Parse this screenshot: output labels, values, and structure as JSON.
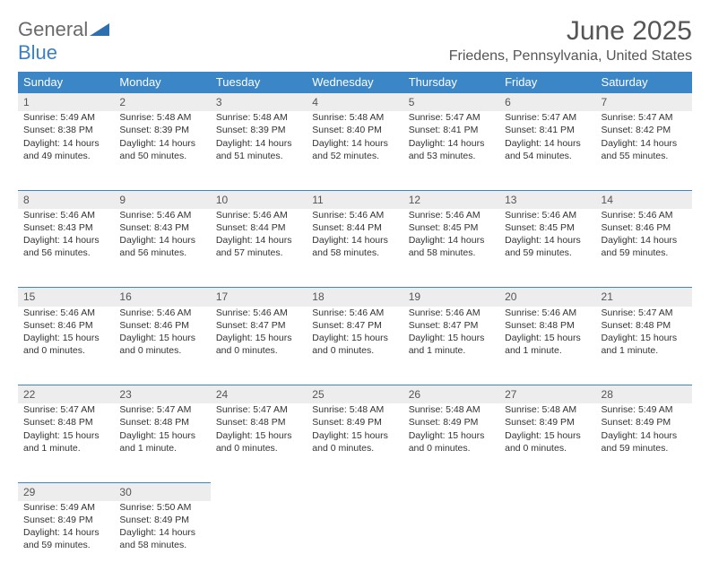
{
  "logo": {
    "part1": "General",
    "part2": "Blue"
  },
  "title": "June 2025",
  "location": "Friedens, Pennsylvania, United States",
  "header_bg": "#3b86c6",
  "daynum_bg": "#ededed",
  "weekdays": [
    "Sunday",
    "Monday",
    "Tuesday",
    "Wednesday",
    "Thursday",
    "Friday",
    "Saturday"
  ],
  "weeks": [
    [
      {
        "n": "1",
        "sr": "Sunrise: 5:49 AM",
        "ss": "Sunset: 8:38 PM",
        "d1": "Daylight: 14 hours",
        "d2": "and 49 minutes."
      },
      {
        "n": "2",
        "sr": "Sunrise: 5:48 AM",
        "ss": "Sunset: 8:39 PM",
        "d1": "Daylight: 14 hours",
        "d2": "and 50 minutes."
      },
      {
        "n": "3",
        "sr": "Sunrise: 5:48 AM",
        "ss": "Sunset: 8:39 PM",
        "d1": "Daylight: 14 hours",
        "d2": "and 51 minutes."
      },
      {
        "n": "4",
        "sr": "Sunrise: 5:48 AM",
        "ss": "Sunset: 8:40 PM",
        "d1": "Daylight: 14 hours",
        "d2": "and 52 minutes."
      },
      {
        "n": "5",
        "sr": "Sunrise: 5:47 AM",
        "ss": "Sunset: 8:41 PM",
        "d1": "Daylight: 14 hours",
        "d2": "and 53 minutes."
      },
      {
        "n": "6",
        "sr": "Sunrise: 5:47 AM",
        "ss": "Sunset: 8:41 PM",
        "d1": "Daylight: 14 hours",
        "d2": "and 54 minutes."
      },
      {
        "n": "7",
        "sr": "Sunrise: 5:47 AM",
        "ss": "Sunset: 8:42 PM",
        "d1": "Daylight: 14 hours",
        "d2": "and 55 minutes."
      }
    ],
    [
      {
        "n": "8",
        "sr": "Sunrise: 5:46 AM",
        "ss": "Sunset: 8:43 PM",
        "d1": "Daylight: 14 hours",
        "d2": "and 56 minutes."
      },
      {
        "n": "9",
        "sr": "Sunrise: 5:46 AM",
        "ss": "Sunset: 8:43 PM",
        "d1": "Daylight: 14 hours",
        "d2": "and 56 minutes."
      },
      {
        "n": "10",
        "sr": "Sunrise: 5:46 AM",
        "ss": "Sunset: 8:44 PM",
        "d1": "Daylight: 14 hours",
        "d2": "and 57 minutes."
      },
      {
        "n": "11",
        "sr": "Sunrise: 5:46 AM",
        "ss": "Sunset: 8:44 PM",
        "d1": "Daylight: 14 hours",
        "d2": "and 58 minutes."
      },
      {
        "n": "12",
        "sr": "Sunrise: 5:46 AM",
        "ss": "Sunset: 8:45 PM",
        "d1": "Daylight: 14 hours",
        "d2": "and 58 minutes."
      },
      {
        "n": "13",
        "sr": "Sunrise: 5:46 AM",
        "ss": "Sunset: 8:45 PM",
        "d1": "Daylight: 14 hours",
        "d2": "and 59 minutes."
      },
      {
        "n": "14",
        "sr": "Sunrise: 5:46 AM",
        "ss": "Sunset: 8:46 PM",
        "d1": "Daylight: 14 hours",
        "d2": "and 59 minutes."
      }
    ],
    [
      {
        "n": "15",
        "sr": "Sunrise: 5:46 AM",
        "ss": "Sunset: 8:46 PM",
        "d1": "Daylight: 15 hours",
        "d2": "and 0 minutes."
      },
      {
        "n": "16",
        "sr": "Sunrise: 5:46 AM",
        "ss": "Sunset: 8:46 PM",
        "d1": "Daylight: 15 hours",
        "d2": "and 0 minutes."
      },
      {
        "n": "17",
        "sr": "Sunrise: 5:46 AM",
        "ss": "Sunset: 8:47 PM",
        "d1": "Daylight: 15 hours",
        "d2": "and 0 minutes."
      },
      {
        "n": "18",
        "sr": "Sunrise: 5:46 AM",
        "ss": "Sunset: 8:47 PM",
        "d1": "Daylight: 15 hours",
        "d2": "and 0 minutes."
      },
      {
        "n": "19",
        "sr": "Sunrise: 5:46 AM",
        "ss": "Sunset: 8:47 PM",
        "d1": "Daylight: 15 hours",
        "d2": "and 1 minute."
      },
      {
        "n": "20",
        "sr": "Sunrise: 5:46 AM",
        "ss": "Sunset: 8:48 PM",
        "d1": "Daylight: 15 hours",
        "d2": "and 1 minute."
      },
      {
        "n": "21",
        "sr": "Sunrise: 5:47 AM",
        "ss": "Sunset: 8:48 PM",
        "d1": "Daylight: 15 hours",
        "d2": "and 1 minute."
      }
    ],
    [
      {
        "n": "22",
        "sr": "Sunrise: 5:47 AM",
        "ss": "Sunset: 8:48 PM",
        "d1": "Daylight: 15 hours",
        "d2": "and 1 minute."
      },
      {
        "n": "23",
        "sr": "Sunrise: 5:47 AM",
        "ss": "Sunset: 8:48 PM",
        "d1": "Daylight: 15 hours",
        "d2": "and 1 minute."
      },
      {
        "n": "24",
        "sr": "Sunrise: 5:47 AM",
        "ss": "Sunset: 8:48 PM",
        "d1": "Daylight: 15 hours",
        "d2": "and 0 minutes."
      },
      {
        "n": "25",
        "sr": "Sunrise: 5:48 AM",
        "ss": "Sunset: 8:49 PM",
        "d1": "Daylight: 15 hours",
        "d2": "and 0 minutes."
      },
      {
        "n": "26",
        "sr": "Sunrise: 5:48 AM",
        "ss": "Sunset: 8:49 PM",
        "d1": "Daylight: 15 hours",
        "d2": "and 0 minutes."
      },
      {
        "n": "27",
        "sr": "Sunrise: 5:48 AM",
        "ss": "Sunset: 8:49 PM",
        "d1": "Daylight: 15 hours",
        "d2": "and 0 minutes."
      },
      {
        "n": "28",
        "sr": "Sunrise: 5:49 AM",
        "ss": "Sunset: 8:49 PM",
        "d1": "Daylight: 14 hours",
        "d2": "and 59 minutes."
      }
    ],
    [
      {
        "n": "29",
        "sr": "Sunrise: 5:49 AM",
        "ss": "Sunset: 8:49 PM",
        "d1": "Daylight: 14 hours",
        "d2": "and 59 minutes."
      },
      {
        "n": "30",
        "sr": "Sunrise: 5:50 AM",
        "ss": "Sunset: 8:49 PM",
        "d1": "Daylight: 14 hours",
        "d2": "and 58 minutes."
      },
      null,
      null,
      null,
      null,
      null
    ]
  ]
}
